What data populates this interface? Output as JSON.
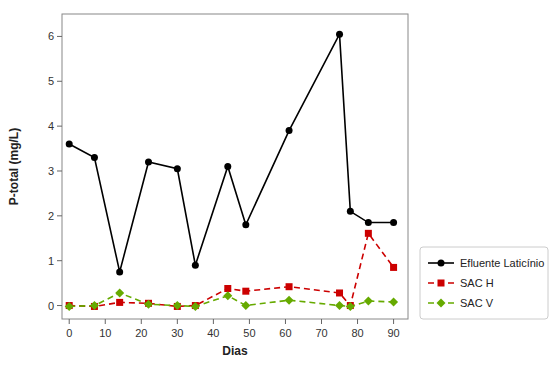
{
  "chart_data": {
    "type": "line",
    "xlabel": "Dias",
    "ylabel": "P-total (mg/L)",
    "x": [
      0,
      7,
      14,
      22,
      30,
      35,
      44,
      49,
      61,
      75,
      78,
      83,
      90
    ],
    "series": [
      {
        "name": "Efluente Laticínio",
        "color": "#000000",
        "marker": "circle",
        "line_style": "solid",
        "values": [
          3.6,
          3.3,
          0.75,
          3.2,
          3.05,
          0.9,
          3.1,
          1.8,
          3.9,
          6.05,
          2.1,
          1.85,
          1.85
        ]
      },
      {
        "name": "SAC H",
        "color": "#cc0000",
        "marker": "square",
        "line_style": "dashed",
        "values": [
          0.0,
          -0.02,
          0.07,
          0.05,
          -0.02,
          0.0,
          0.38,
          0.32,
          0.42,
          0.28,
          0.0,
          1.61,
          0.85
        ]
      },
      {
        "name": "SAC V",
        "color": "#66aa00",
        "marker": "diamond",
        "line_style": "dashed",
        "values": [
          -0.02,
          0.0,
          0.28,
          0.03,
          0.0,
          -0.02,
          0.22,
          0.0,
          0.12,
          0.0,
          -0.02,
          0.1,
          0.08
        ]
      }
    ],
    "xlim": [
      -2,
      94
    ],
    "ylim": [
      -0.3,
      6.5
    ],
    "xticks": [
      0,
      10,
      20,
      30,
      40,
      50,
      60,
      70,
      80,
      90
    ],
    "yticks": [
      0,
      1,
      2,
      3,
      4,
      5,
      6
    ],
    "grid": false,
    "legend": "lower right"
  }
}
